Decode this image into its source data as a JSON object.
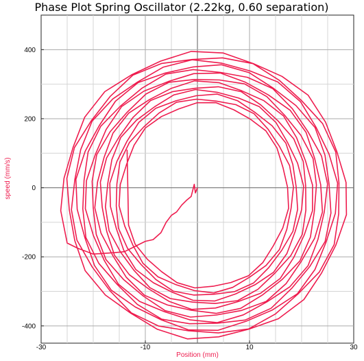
{
  "chart_data": {
    "type": "line",
    "title": "Phase Plot Spring Oscillator (2.22kg, 0.60 separation)",
    "xlabel": "Position (mm)",
    "ylabel": "speed (mm/s)",
    "xlim": [
      -30,
      30
    ],
    "ylim": [
      -450,
      500
    ],
    "x_ticks": [
      -30,
      -10,
      10,
      30
    ],
    "x_tick_labels": [
      "-30",
      "-10",
      "10",
      "30"
    ],
    "y_ticks": [
      -400,
      -200,
      0,
      200,
      400
    ],
    "y_tick_labels": [
      "-400",
      "-200",
      "0",
      "200",
      "400"
    ],
    "grid": true,
    "legend": "none",
    "series": [
      {
        "color": "#ee1c4e",
        "start_x": 0,
        "start_y": 0,
        "transient_x": [
          0,
          -0.4,
          -0.6,
          -1.2,
          -2,
          -3,
          -4,
          -5,
          -6,
          -7,
          -8.5,
          -10,
          -12,
          -14,
          -16,
          -18,
          -20,
          -23,
          -25
        ],
        "transient_y": [
          0,
          -15,
          10,
          -25,
          -35,
          -50,
          -70,
          -80,
          -100,
          -130,
          -150,
          -155,
          -170,
          -185,
          -188,
          -190,
          -192,
          -175,
          -160
        ],
        "spiral_params": {
          "center_x": 1.5,
          "center_y": -25,
          "amplitude_x_start": 27.5,
          "amplitude_x_end": 15.5,
          "amplitude_y_start": 420,
          "amplitude_y_end": 262,
          "turns": 13,
          "end_position": -13.5,
          "end_speed": 110
        }
      }
    ]
  }
}
